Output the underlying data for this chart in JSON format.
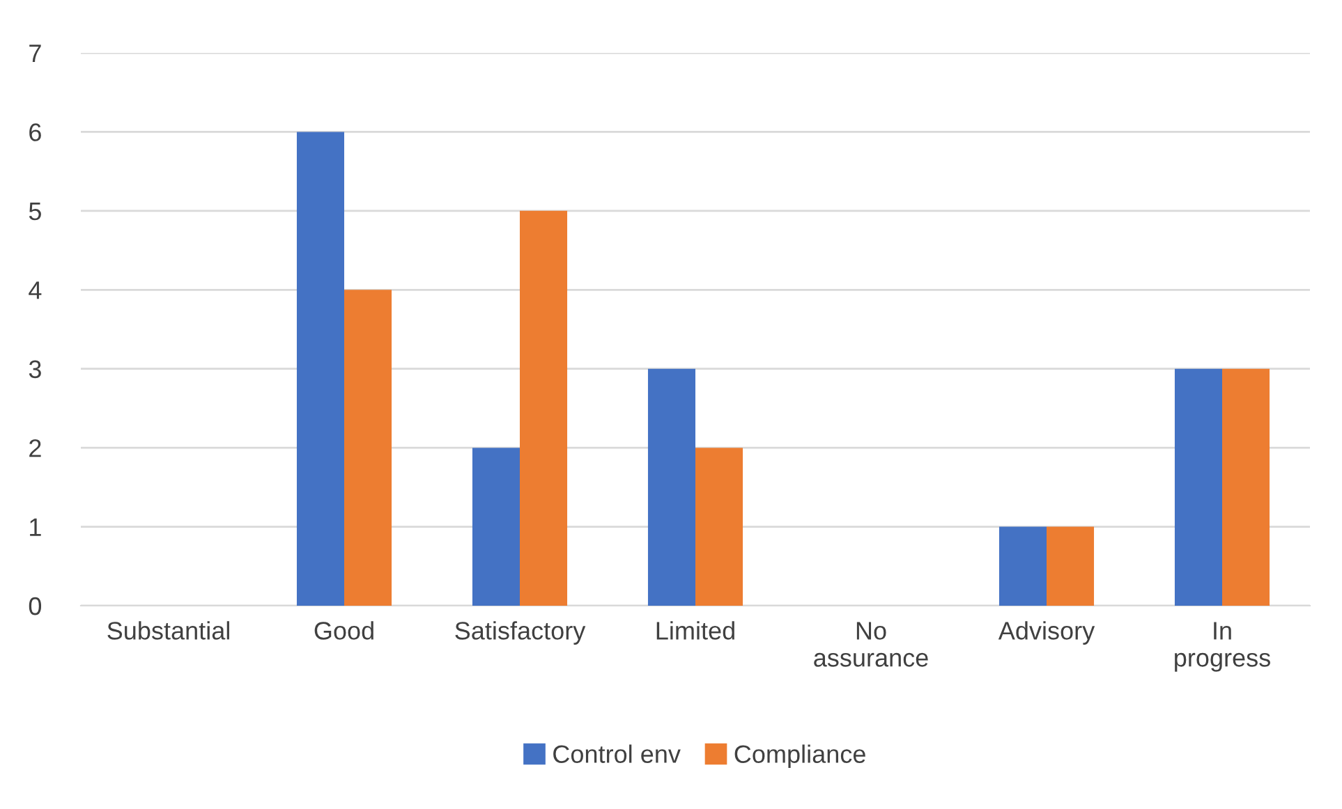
{
  "chart_data": {
    "type": "bar",
    "categories": [
      "Substantial",
      "Good",
      "Satisfactory",
      "Limited",
      "No assurance",
      "Advisory",
      "In progress"
    ],
    "series": [
      {
        "name": "Control env",
        "color": "#4472c4",
        "values": [
          0,
          6,
          2,
          3,
          0,
          1,
          3
        ]
      },
      {
        "name": "Compliance",
        "color": "#ed7d31",
        "values": [
          0,
          4,
          5,
          2,
          0,
          1,
          3
        ]
      }
    ],
    "ylim": [
      0,
      7
    ],
    "yticks": [
      0,
      1,
      2,
      3,
      4,
      5,
      6,
      7
    ],
    "grid": "y",
    "legend": "bottom"
  }
}
